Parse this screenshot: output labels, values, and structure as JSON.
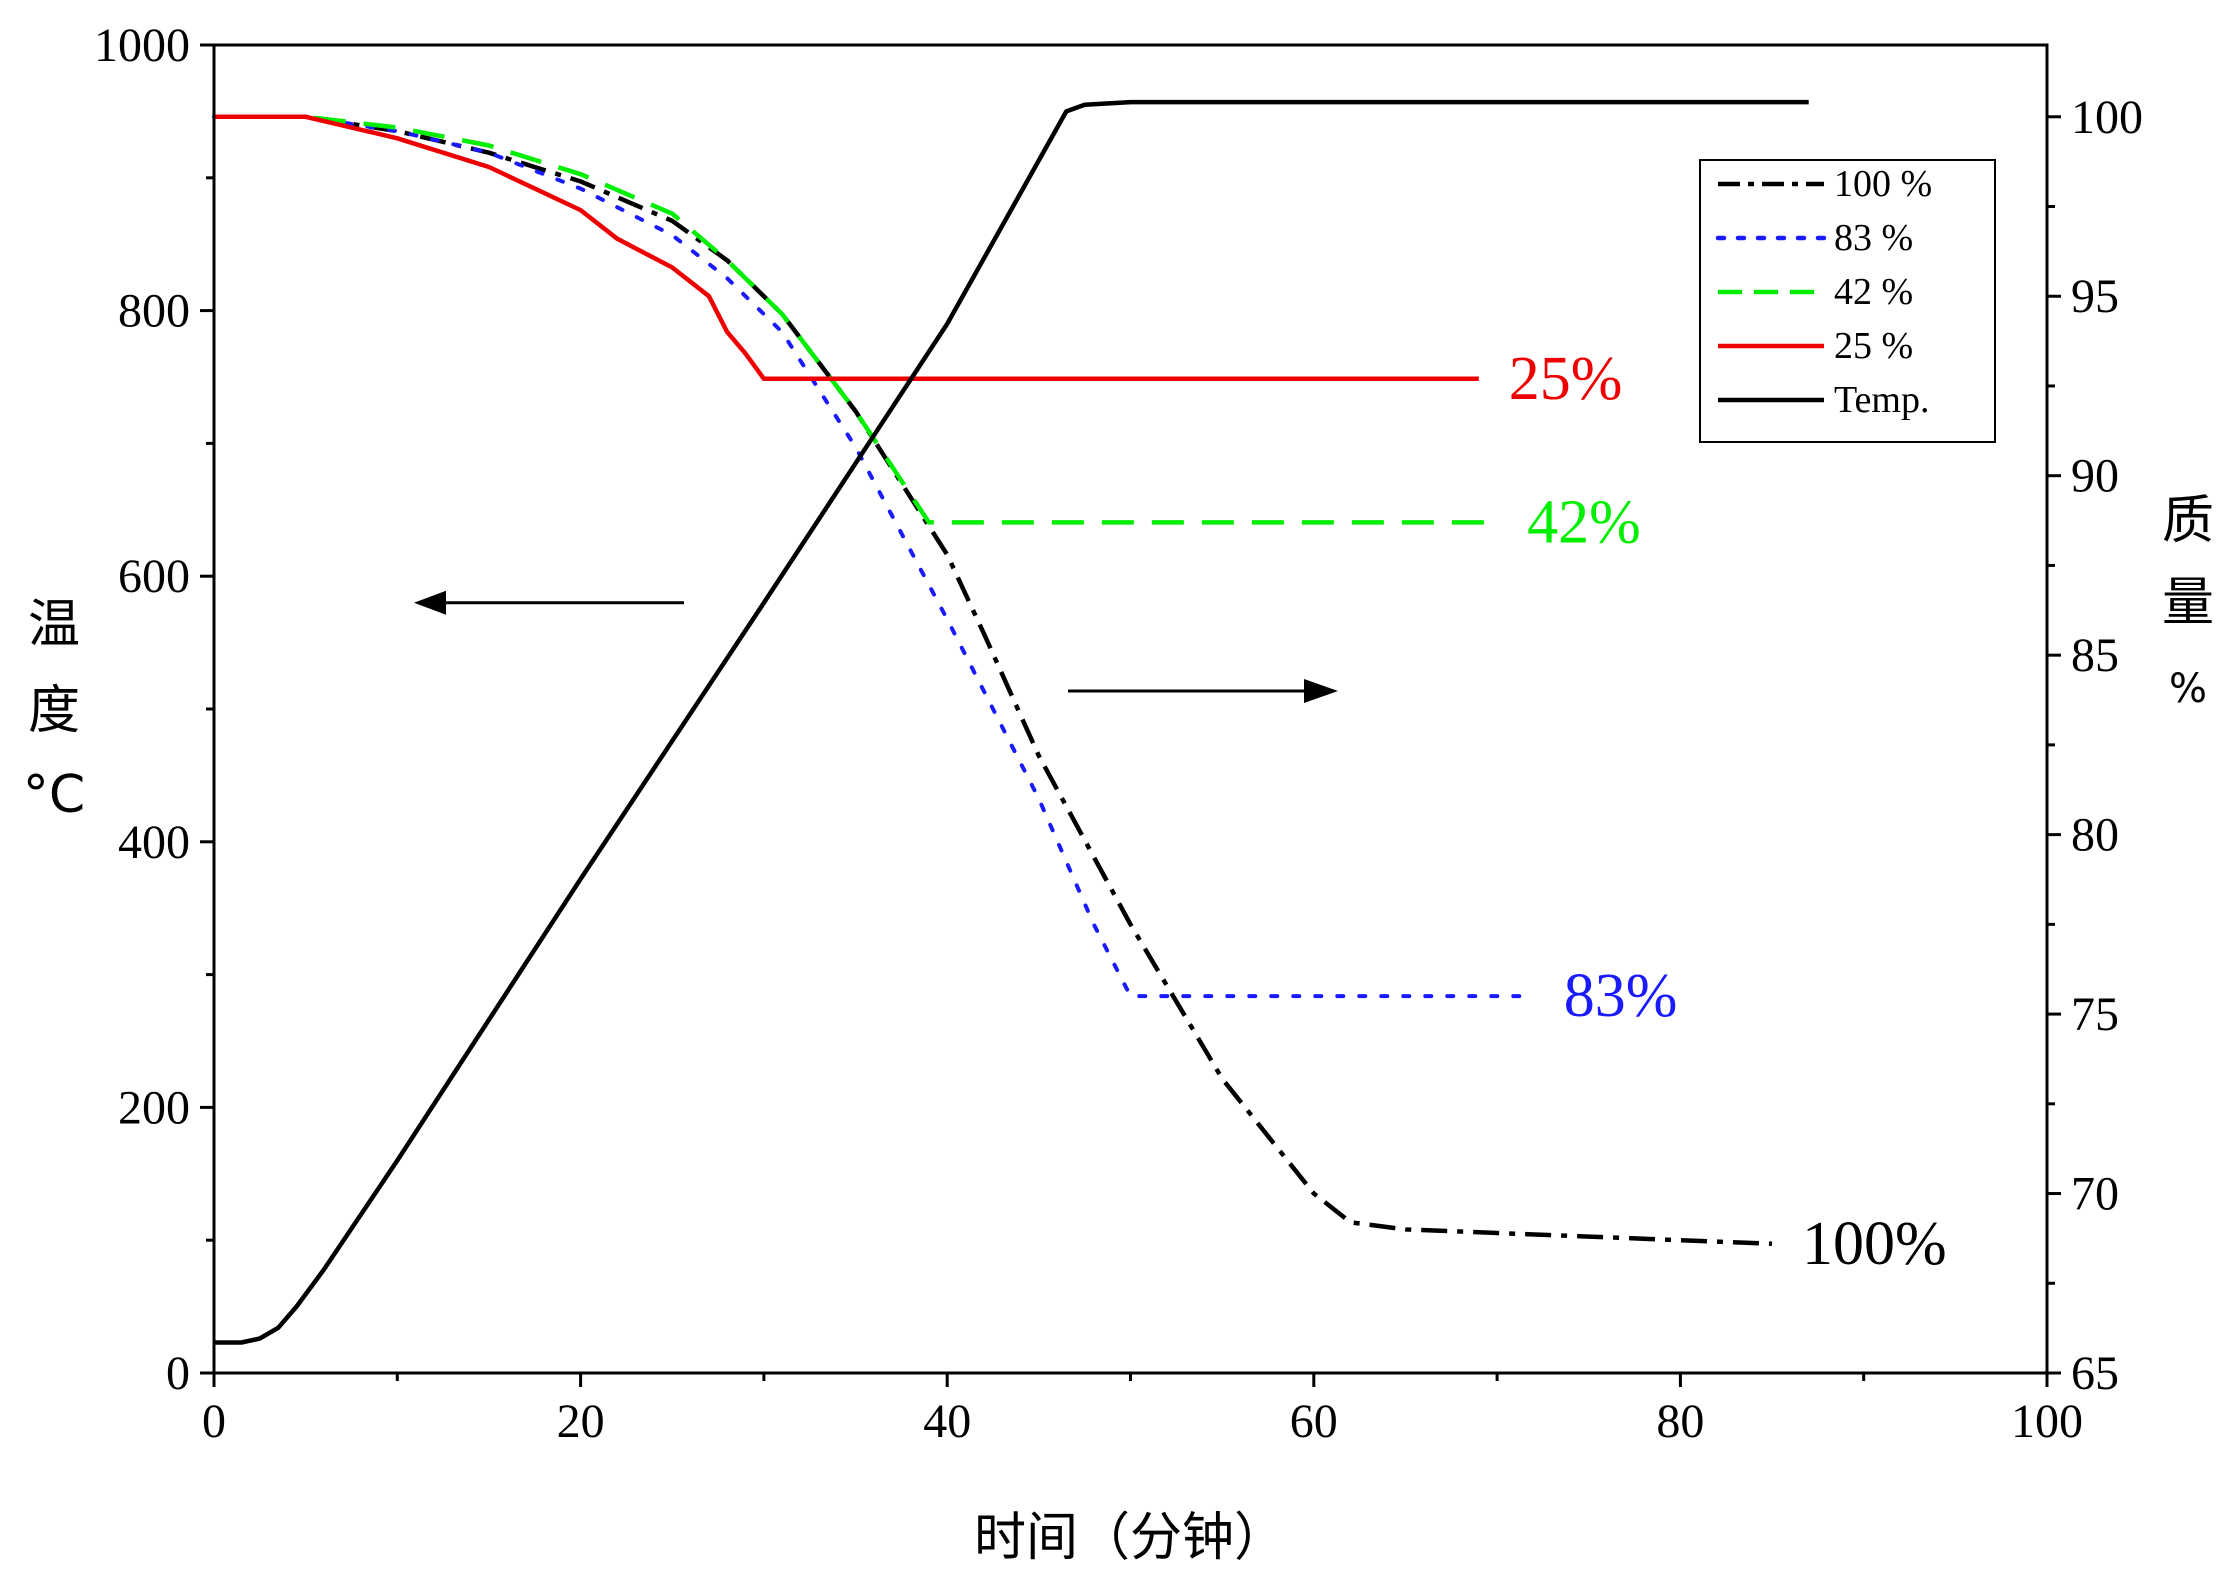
{
  "chart_data": {
    "type": "line",
    "xlabel": "时间（分钟）",
    "ylabel_left": [
      "温",
      "度",
      "°C"
    ],
    "ylabel_right": [
      "质",
      "量",
      "%"
    ],
    "xlim": [
      0,
      100
    ],
    "ylim_left": [
      0,
      1000
    ],
    "ylim_right": [
      65,
      102
    ],
    "x_ticks": [
      "0",
      "20",
      "40",
      "60",
      "80",
      "100"
    ],
    "y_left_ticks": [
      "0",
      "200",
      "400",
      "600",
      "800",
      "1000"
    ],
    "y_right_ticks": [
      "65",
      "70",
      "75",
      "80",
      "85",
      "90",
      "95",
      "100"
    ],
    "grid": false,
    "legend_position": "top-right",
    "series": [
      {
        "name": "100 %",
        "axis": "right",
        "color": "#000000",
        "style": "dashdot",
        "end_label": "100%",
        "points": [
          [
            0,
            100
          ],
          [
            5,
            100
          ],
          [
            10,
            99.6
          ],
          [
            15,
            99
          ],
          [
            20,
            98.2
          ],
          [
            25,
            97.1
          ],
          [
            28,
            96
          ],
          [
            31,
            94.5
          ],
          [
            35,
            91.8
          ],
          [
            40,
            87.8
          ],
          [
            42,
            85.6
          ],
          [
            45,
            82.2
          ],
          [
            50,
            77.5
          ],
          [
            55,
            73.2
          ],
          [
            60,
            70
          ],
          [
            62,
            69.2
          ],
          [
            65,
            69
          ],
          [
            70,
            68.9
          ],
          [
            75,
            68.8
          ],
          [
            80,
            68.7
          ],
          [
            85,
            68.6
          ]
        ]
      },
      {
        "name": "83 %",
        "axis": "right",
        "color": "#1a1aff",
        "style": "dotted",
        "end_label": "83%",
        "points": [
          [
            0,
            100
          ],
          [
            5,
            100
          ],
          [
            10,
            99.6
          ],
          [
            15,
            99
          ],
          [
            20,
            98
          ],
          [
            25,
            96.7
          ],
          [
            28,
            95.5
          ],
          [
            31,
            94
          ],
          [
            35,
            90.8
          ],
          [
            40,
            86
          ],
          [
            45,
            81
          ],
          [
            48,
            77.5
          ],
          [
            50,
            75.5
          ],
          [
            55,
            75.5
          ],
          [
            60,
            75.5
          ],
          [
            65,
            75.5
          ],
          [
            72,
            75.5
          ]
        ]
      },
      {
        "name": "42 %",
        "axis": "right",
        "color": "#00ee00",
        "style": "dashed",
        "end_label": "42%",
        "points": [
          [
            0,
            100
          ],
          [
            5,
            100
          ],
          [
            10,
            99.7
          ],
          [
            15,
            99.2
          ],
          [
            20,
            98.4
          ],
          [
            25,
            97.3
          ],
          [
            28,
            96
          ],
          [
            31,
            94.5
          ],
          [
            35,
            91.8
          ],
          [
            39,
            88.7
          ],
          [
            45,
            88.7
          ],
          [
            55,
            88.7
          ],
          [
            65,
            88.7
          ],
          [
            70,
            88.7
          ]
        ]
      },
      {
        "name": "25 %",
        "axis": "right",
        "color": "#ee0000",
        "style": "solid",
        "end_label": "25%",
        "points": [
          [
            0,
            100
          ],
          [
            5,
            100
          ],
          [
            10,
            99.4
          ],
          [
            15,
            98.6
          ],
          [
            20,
            97.4
          ],
          [
            22,
            96.6
          ],
          [
            25,
            95.8
          ],
          [
            27,
            95
          ],
          [
            28,
            94
          ],
          [
            29,
            93.4
          ],
          [
            30,
            92.7
          ],
          [
            35,
            92.7
          ],
          [
            45,
            92.7
          ],
          [
            55,
            92.7
          ],
          [
            65,
            92.7
          ],
          [
            69,
            92.7
          ]
        ]
      },
      {
        "name": "Temp.",
        "axis": "left",
        "color": "#000000",
        "style": "solid",
        "end_label": "",
        "points": [
          [
            0,
            23
          ],
          [
            1.5,
            23
          ],
          [
            2.5,
            26
          ],
          [
            3.5,
            34
          ],
          [
            4.5,
            50
          ],
          [
            6,
            78
          ],
          [
            10,
            160
          ],
          [
            20,
            372
          ],
          [
            30,
            580
          ],
          [
            40,
            790
          ],
          [
            46.5,
            950
          ],
          [
            47.5,
            955
          ],
          [
            50,
            957
          ],
          [
            60,
            957
          ],
          [
            70,
            957
          ],
          [
            80,
            957
          ],
          [
            87,
            957
          ]
        ]
      }
    ]
  }
}
